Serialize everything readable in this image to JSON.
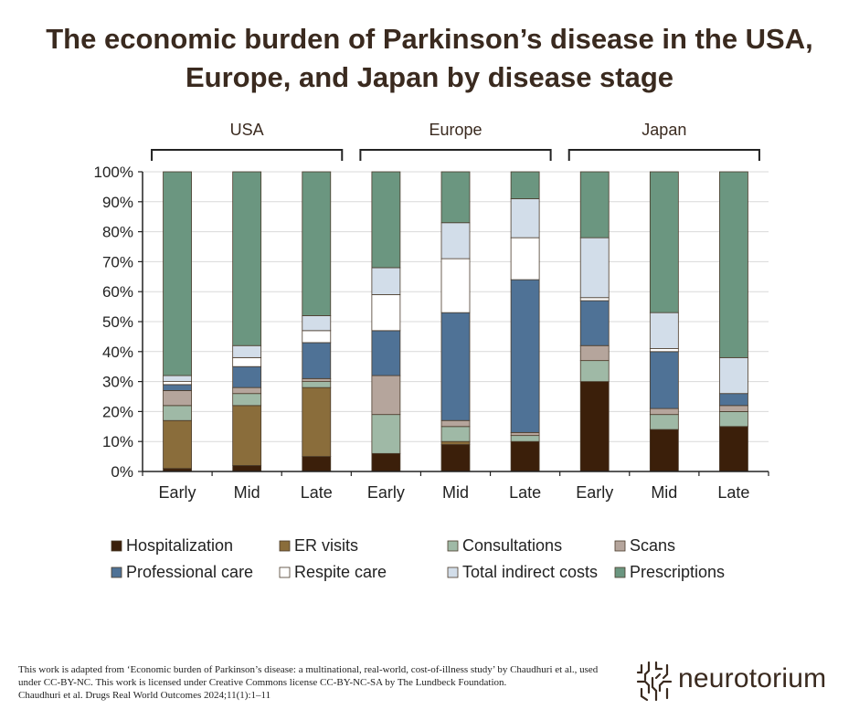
{
  "chart_data": {
    "type": "bar",
    "stacked": true,
    "title_line1": "The economic burden of Parkinson’s disease in the USA,",
    "title_line2": "Europe, and Japan by disease stage",
    "groups": [
      "USA",
      "Europe",
      "Japan"
    ],
    "categories": [
      "Early",
      "Mid",
      "Late",
      "Early",
      "Mid",
      "Late",
      "Early",
      "Mid",
      "Late"
    ],
    "y_ticks": [
      "0%",
      "10%",
      "20%",
      "30%",
      "40%",
      "50%",
      "60%",
      "70%",
      "80%",
      "90%",
      "100%"
    ],
    "ylim": [
      0,
      100
    ],
    "grid": true,
    "legend_placement": "bottom",
    "series": [
      {
        "name": "Hospitalization",
        "color": "#3b1f0a",
        "values": [
          1,
          2,
          5,
          6,
          9,
          10,
          30,
          14,
          15
        ]
      },
      {
        "name": "ER visits",
        "color": "#8a6d3b",
        "values": [
          16,
          20,
          23,
          0,
          1,
          0,
          0,
          0,
          0
        ]
      },
      {
        "name": "Consultations",
        "color": "#9fb9a6",
        "values": [
          5,
          4,
          2,
          13,
          5,
          2,
          7,
          5,
          5
        ]
      },
      {
        "name": "Scans",
        "color": "#b5a59c",
        "values": [
          5,
          2,
          1,
          13,
          2,
          1,
          5,
          2,
          2
        ]
      },
      {
        "name": "Professional care",
        "color": "#4f7296",
        "values": [
          2,
          7,
          12,
          15,
          36,
          51,
          15,
          19,
          4
        ]
      },
      {
        "name": "Respite care",
        "color": "#ffffff",
        "values": [
          1,
          3,
          4,
          12,
          18,
          14,
          1,
          1,
          0
        ]
      },
      {
        "name": "Total indirect costs",
        "color": "#d2dde9",
        "values": [
          2,
          4,
          5,
          9,
          12,
          13,
          20,
          12,
          12
        ]
      },
      {
        "name": "Prescriptions",
        "color": "#6b9680",
        "values": [
          68,
          58,
          48,
          32,
          17,
          9,
          22,
          47,
          62
        ]
      }
    ]
  },
  "footer": {
    "line1": "This work is adapted from ‘Economic burden of Parkinson’s disease: a multinational, real-world, cost-of-illness study’ by Chaudhuri et al., used under CC-BY-NC. This work is licensed under Creative Commons license CC-BY-NC-SA by The Lundbeck Foundation.",
    "line2": "Chaudhuri et al. Drugs Real World Outcomes 2024;11(1):1–11"
  },
  "brand": {
    "name": "neurotorium",
    "icon": "neurotorium-logo-icon"
  }
}
